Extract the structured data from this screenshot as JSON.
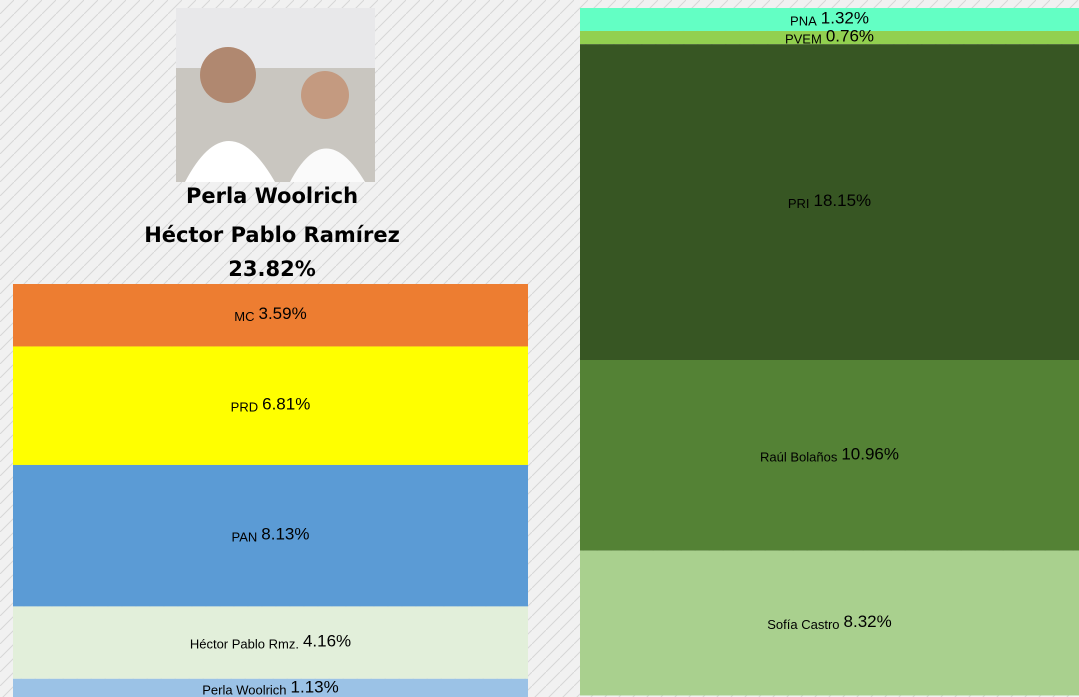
{
  "chart_data": [
    {
      "type": "stacked-column",
      "title": [
        "Perla Woolrich",
        "Héctor Pablo Ramírez"
      ],
      "total": 23.82,
      "total_label": "23.82%",
      "series": [
        {
          "name": "MC",
          "color": "#ed7d31",
          "values": [
            3.59
          ],
          "value_labels": [
            "3.59%"
          ]
        },
        {
          "name": "PRD",
          "color": "#ffff00",
          "values": [
            6.81
          ],
          "value_labels": [
            "6.81%"
          ]
        },
        {
          "name": "PAN",
          "color": "#5b9bd5",
          "values": [
            8.13
          ],
          "value_labels": [
            "8.13%"
          ]
        },
        {
          "name": "Héctor Pablo Rmz.",
          "color": "#e2efda",
          "values": [
            4.16
          ],
          "value_labels": [
            "4.16%"
          ]
        },
        {
          "name": "Perla Woolrich",
          "color": "#9bc2e6",
          "values": [
            1.13
          ],
          "value_labels": [
            "1.13%"
          ]
        }
      ]
    },
    {
      "type": "stacked-column",
      "series": [
        {
          "name": "PNA",
          "color": "#63ffc4",
          "values": [
            1.32
          ],
          "value_labels": [
            "1.32%"
          ]
        },
        {
          "name": "PVEM",
          "color": "#92d050",
          "values": [
            0.76
          ],
          "value_labels": [
            "0.76%"
          ]
        },
        {
          "name": "PRI",
          "color": "#375623",
          "values": [
            18.15
          ],
          "value_labels": [
            "18.15%"
          ]
        },
        {
          "name": "Raúl Bolaños",
          "color": "#548235",
          "values": [
            10.96
          ],
          "value_labels": [
            "10.96%"
          ]
        },
        {
          "name": "Sofía Castro",
          "color": "#a9d08e",
          "values": [
            8.32
          ],
          "value_labels": [
            "8.32%"
          ]
        }
      ]
    }
  ]
}
